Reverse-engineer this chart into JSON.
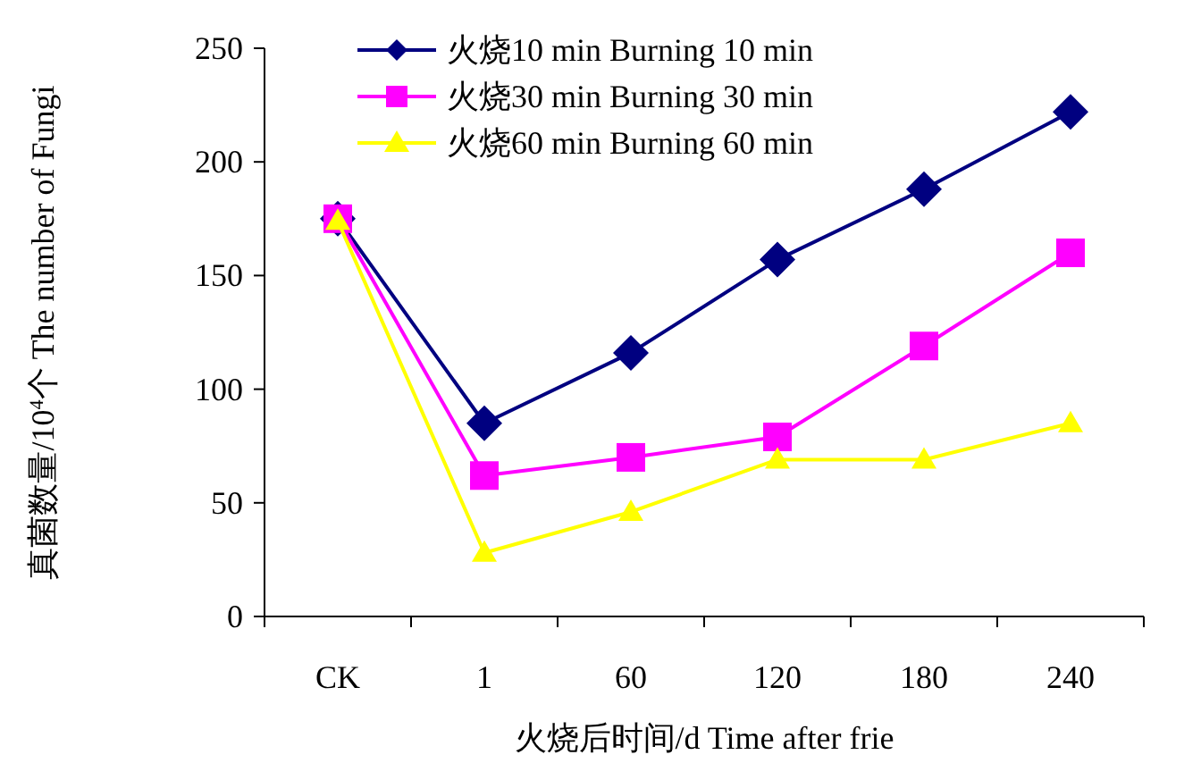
{
  "chart_data": {
    "type": "line",
    "xlabel": "火烧后时间/d Time after frie",
    "ylabel": "真菌数量/10$^{4}$个 The number of Fungi",
    "categories": [
      "CK",
      "1",
      "60",
      "120",
      "180",
      "240"
    ],
    "ylim": [
      0,
      250
    ],
    "yticks": [
      0,
      50,
      100,
      150,
      200,
      250
    ],
    "grid": false,
    "legend": "top",
    "line_style": "solid",
    "series": [
      {
        "name": "火烧10 min Burning 10 min",
        "color": "#000080",
        "marker": "diamond",
        "values": [
          175,
          85,
          116,
          157,
          188,
          222
        ]
      },
      {
        "name": "火烧30 min Burning 30 min",
        "color": "#ff00ff",
        "marker": "square",
        "values": [
          175,
          62,
          70,
          79,
          119,
          160
        ]
      },
      {
        "name": "火烧60 min Burning 60 min",
        "color": "#ffff00",
        "marker": "triangle",
        "values": [
          174,
          28,
          46,
          69,
          69,
          85
        ]
      }
    ]
  }
}
